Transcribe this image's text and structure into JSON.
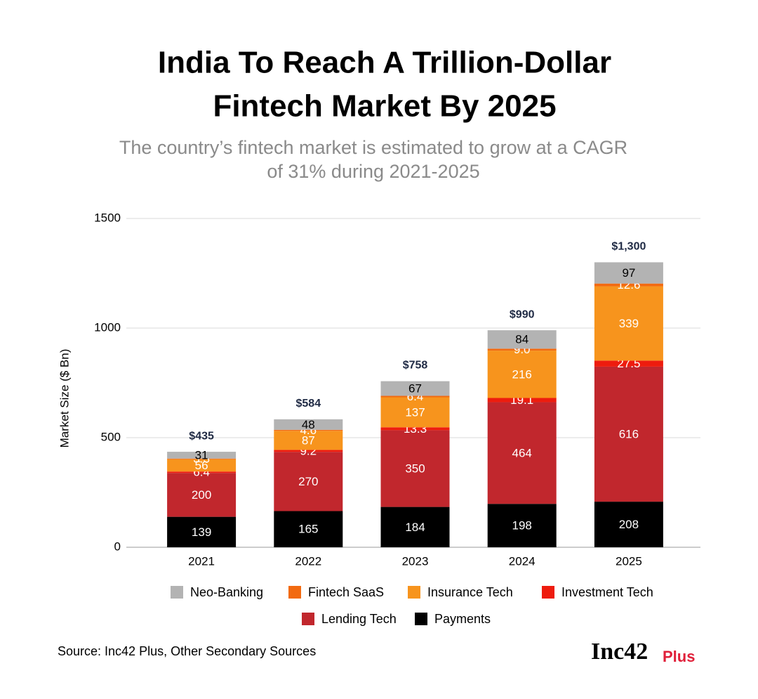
{
  "chart_data": {
    "type": "stacked_bar",
    "title_lines": [
      "India To Reach A Trillion-Dollar",
      "Fintech Market By 2025"
    ],
    "subtitle_lines": [
      "The country’s fintech market is estimated to grow at a CAGR",
      "of 31% during 2021-2025"
    ],
    "y_label": "Market Size ($ Bn)",
    "categories": [
      "2021",
      "2022",
      "2023",
      "2024",
      "2025"
    ],
    "series": [
      {
        "name": "Neo-Banking",
        "color": "#b3b3b3",
        "label_color": "#000000",
        "values": [
          31,
          48,
          67,
          84,
          97
        ]
      },
      {
        "name": "Fintech SaaS",
        "color": "#f26a10",
        "label_color": "#ffffff",
        "values": [
          3.3,
          4.6,
          6.4,
          9,
          12.6
        ],
        "value_labels": [
          "3.3",
          "4.6",
          "6.4",
          "9.0",
          "12.6"
        ]
      },
      {
        "name": "Insurance Tech",
        "color": "#f7941d",
        "label_color": "#ffffff",
        "values": [
          56,
          87,
          137,
          216,
          339
        ]
      },
      {
        "name": "Investment Tech",
        "color": "#ee1c0e",
        "label_color": "#ffffff",
        "values": [
          6.4,
          9.2,
          13.3,
          19.1,
          27.5
        ]
      },
      {
        "name": "Lending Tech",
        "color": "#c1272d",
        "label_color": "#ffffff",
        "values": [
          200,
          270,
          350,
          464,
          616
        ]
      },
      {
        "name": "Payments",
        "color": "#000000",
        "label_color": "#ffffff",
        "values": [
          139,
          165,
          184,
          198,
          208
        ]
      }
    ],
    "totals": {
      "values": [
        435,
        584,
        758,
        990,
        1300
      ],
      "value_labels": [
        "$435",
        "$584",
        "$758",
        "$990",
        "$1,300"
      ]
    },
    "ylim": [
      0,
      1500
    ],
    "yticks": [
      0,
      500,
      1000,
      1500
    ],
    "grid": true,
    "source": "Source: Inc42 Plus, Other Secondary Sources",
    "brand": "Inc42",
    "brand_suffix": "Plus"
  }
}
